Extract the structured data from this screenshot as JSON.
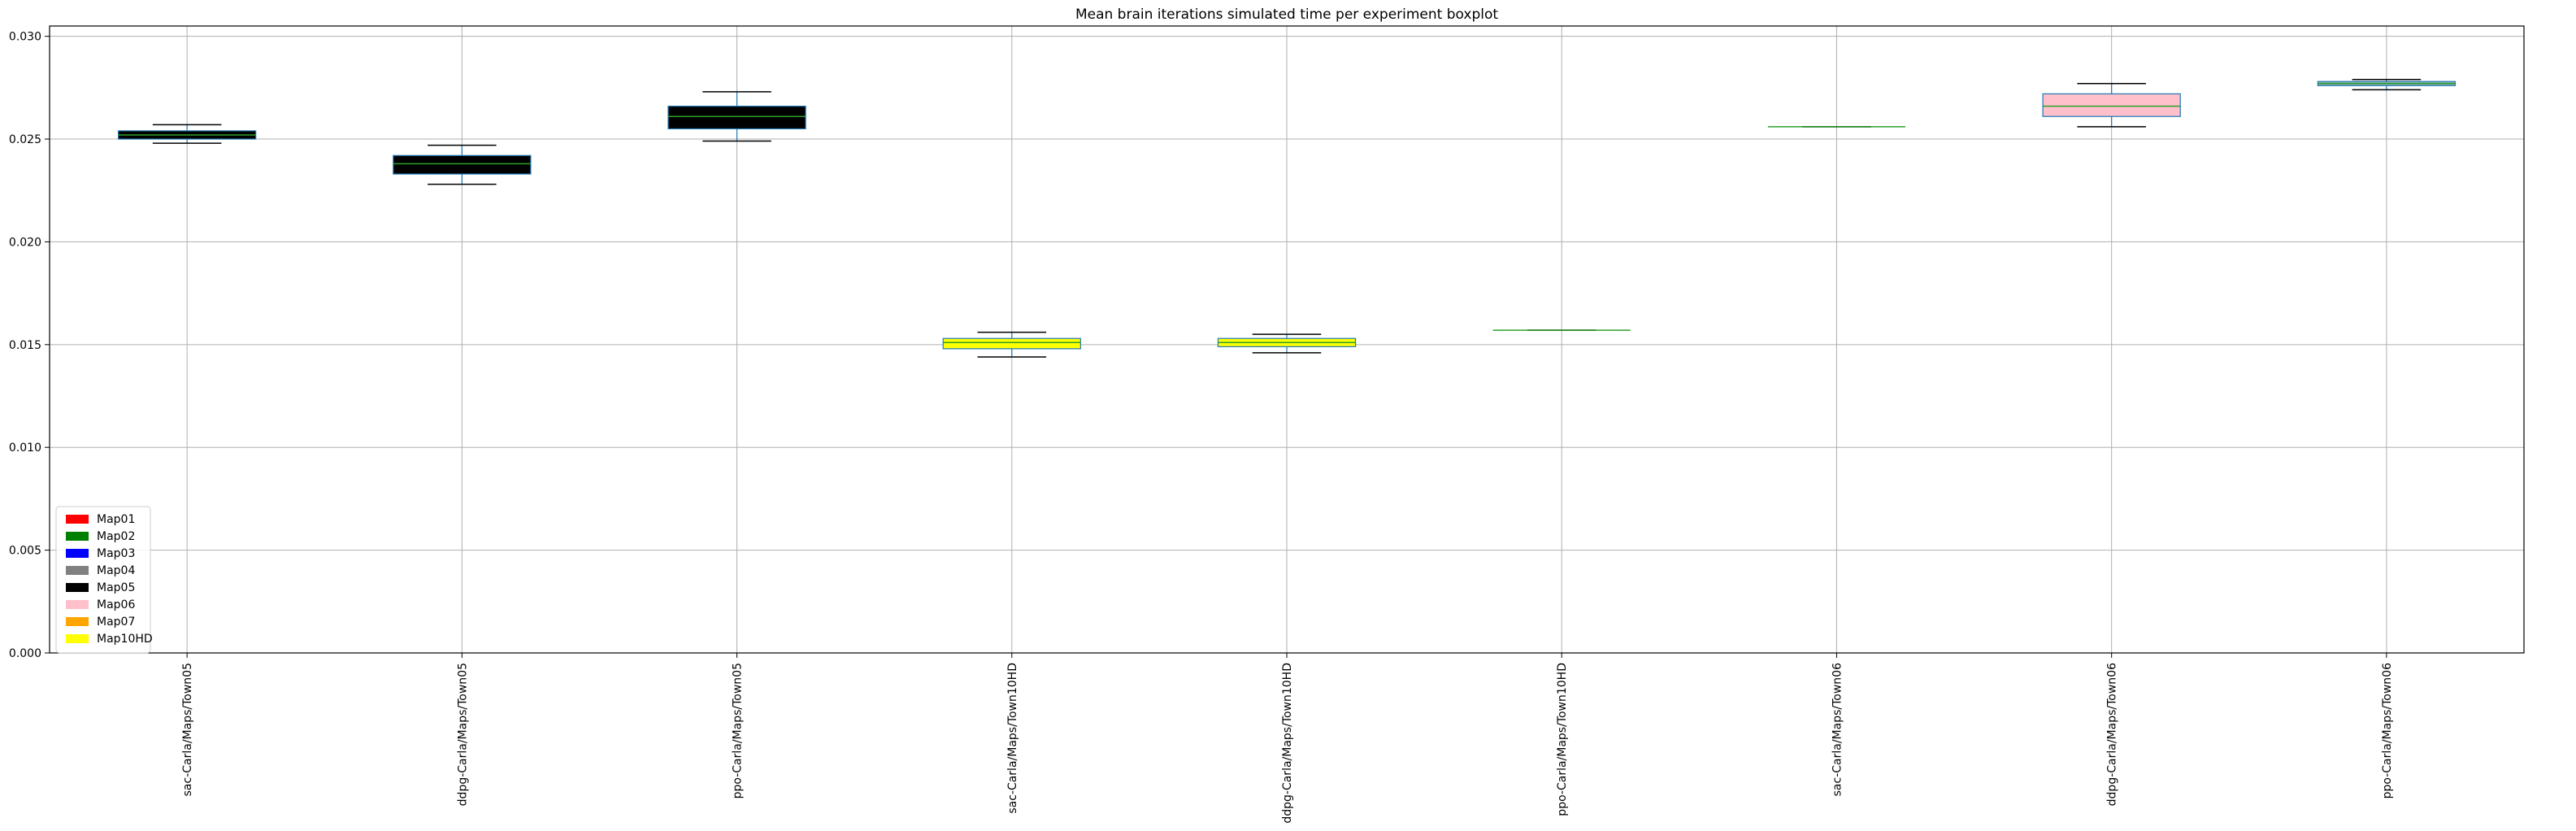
{
  "chart_data": {
    "type": "boxplot",
    "title": "Mean brain iterations simulated time per experiment boxplot",
    "xlabel": "",
    "ylabel": "",
    "ylim": [
      0.0,
      0.0305
    ],
    "yticks": [
      0.0,
      0.005,
      0.01,
      0.015,
      0.02,
      0.025,
      0.03
    ],
    "ytick_labels": [
      "0.000",
      "0.005",
      "0.010",
      "0.015",
      "0.020",
      "0.025",
      "0.030"
    ],
    "grid": true,
    "legend_position": "bottom-left",
    "legend": [
      {
        "label": "Map01",
        "color": "#ff0000"
      },
      {
        "label": "Map02",
        "color": "#008000"
      },
      {
        "label": "Map03",
        "color": "#0000ff"
      },
      {
        "label": "Map04",
        "color": "#808080"
      },
      {
        "label": "Map05",
        "color": "#000000"
      },
      {
        "label": "Map06",
        "color": "#ffc0cb"
      },
      {
        "label": "Map07",
        "color": "#ffa500"
      },
      {
        "label": "Map10HD",
        "color": "#ffff00"
      }
    ],
    "categories": [
      "sac-Carla/Maps/Town05",
      "ddpg-Carla/Maps/Town05",
      "ppo-Carla/Maps/Town05",
      "sac-Carla/Maps/Town10HD",
      "ddpg-Carla/Maps/Town10HD",
      "ppo-Carla/Maps/Town10HD",
      "sac-Carla/Maps/Town06",
      "ddpg-Carla/Maps/Town06",
      "ppo-Carla/Maps/Town06"
    ],
    "boxes": [
      {
        "whisker_low": 0.0248,
        "q1": 0.025,
        "median": 0.0252,
        "q3": 0.0254,
        "whisker_high": 0.0257,
        "fill": "#000000"
      },
      {
        "whisker_low": 0.0228,
        "q1": 0.0233,
        "median": 0.0238,
        "q3": 0.0242,
        "whisker_high": 0.0247,
        "fill": "#000000"
      },
      {
        "whisker_low": 0.0249,
        "q1": 0.0255,
        "median": 0.0261,
        "q3": 0.0266,
        "whisker_high": 0.0273,
        "fill": "#000000"
      },
      {
        "whisker_low": 0.0144,
        "q1": 0.0148,
        "median": 0.0151,
        "q3": 0.0153,
        "whisker_high": 0.0156,
        "fill": "#ffff00"
      },
      {
        "whisker_low": 0.0146,
        "q1": 0.0149,
        "median": 0.0151,
        "q3": 0.0153,
        "whisker_high": 0.0155,
        "fill": "#ffff00"
      },
      {
        "whisker_low": 0.0157,
        "q1": 0.0157,
        "median": 0.0157,
        "q3": 0.0157,
        "whisker_high": 0.0157,
        "fill": "#ffff00"
      },
      {
        "whisker_low": 0.0256,
        "q1": 0.0256,
        "median": 0.0256,
        "q3": 0.0256,
        "whisker_high": 0.0256,
        "fill": "#ffc0cb"
      },
      {
        "whisker_low": 0.0256,
        "q1": 0.0261,
        "median": 0.0266,
        "q3": 0.0272,
        "whisker_high": 0.0277,
        "fill": "#ffc0cb"
      },
      {
        "whisker_low": 0.0274,
        "q1": 0.0276,
        "median": 0.0277,
        "q3": 0.0278,
        "whisker_high": 0.0279,
        "fill": "#8fb0b0"
      }
    ],
    "box_edge_color": "#1f77b4",
    "median_color": "#2ca02c",
    "whisker_color": "#000000"
  }
}
